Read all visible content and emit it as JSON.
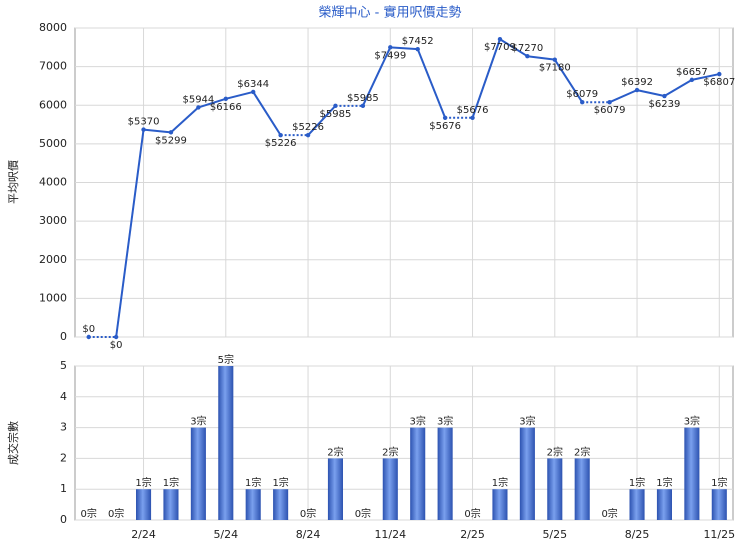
{
  "chart_data": [
    {
      "type": "line",
      "title": "榮輝中心 - 實用呎價走勢",
      "y_label": "平均呎價",
      "color": "#2a5cc8",
      "values": [
        0,
        0,
        5370,
        5299,
        5944,
        6166,
        6344,
        5226,
        5226,
        5985,
        5985,
        7499,
        7452,
        5676,
        5676,
        7709,
        7270,
        7180,
        6079,
        6079,
        6392,
        6239,
        6657,
        6807
      ],
      "value_labels": [
        "$0",
        "$0",
        "$5370",
        "$5299",
        "$5944",
        "$6166",
        "$6344",
        "$5226",
        "$5226",
        "$5985",
        "$5985",
        "$7499",
        "$7452",
        "$5676",
        "$5676",
        "$7709",
        "$7270",
        "$7180",
        "$6079",
        "$6079",
        "$6392",
        "$6239",
        "$6657",
        "$6807"
      ],
      "ylim": [
        0,
        8000
      ],
      "yticks": [
        0,
        1000,
        2000,
        3000,
        4000,
        5000,
        6000,
        7000,
        8000
      ],
      "grid": true
    },
    {
      "type": "bar",
      "y_label": "成交宗數",
      "color": "#3a66c8",
      "categories": [
        null,
        null,
        "2/24",
        null,
        null,
        "5/24",
        null,
        null,
        "8/24",
        null,
        null,
        "11/24",
        null,
        null,
        "2/25",
        null,
        null,
        "5/25",
        null,
        null,
        "8/25",
        null,
        null,
        "11/25"
      ],
      "values": [
        0,
        0,
        1,
        1,
        3,
        5,
        1,
        1,
        0,
        2,
        0,
        2,
        3,
        3,
        0,
        1,
        3,
        2,
        2,
        0,
        1,
        1,
        3,
        1
      ],
      "value_labels": [
        "0宗",
        "0宗",
        "1宗",
        "1宗",
        "3宗",
        "5宗",
        "1宗",
        "1宗",
        "0宗",
        "2宗",
        "0宗",
        "2宗",
        "3宗",
        "3宗",
        "0宗",
        "1宗",
        "3宗",
        "2宗",
        "2宗",
        "0宗",
        "1宗",
        "1宗",
        "3宗",
        "1宗"
      ],
      "ylim": [
        0,
        5
      ],
      "yticks": [
        0,
        1,
        2,
        3,
        4,
        5
      ],
      "grid": true
    }
  ]
}
